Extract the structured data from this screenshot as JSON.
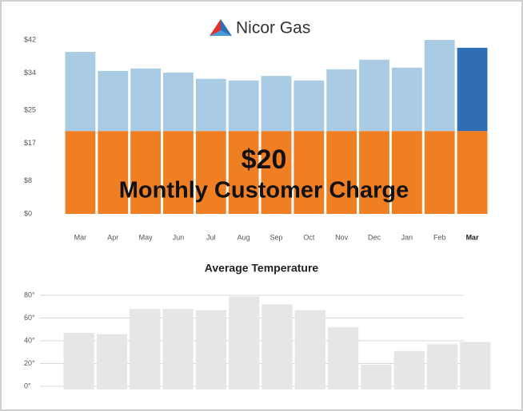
{
  "chart_data": [
    {
      "type": "bar",
      "stacked": true,
      "title": "Nicor Gas",
      "categories": [
        "Mar",
        "Apr",
        "May",
        "Jun",
        "Jul",
        "Aug",
        "Sep",
        "Oct",
        "Nov",
        "Dec",
        "Jan",
        "Feb",
        "Mar"
      ],
      "highlight_category": 12,
      "series": [
        {
          "color": "#ef7f22",
          "values": [
            20,
            20,
            20,
            20,
            20,
            20,
            20,
            20,
            20,
            20,
            20,
            20,
            20
          ]
        },
        {
          "colors": [
            "#a9cbe4",
            "#a9cbe4",
            "#a9cbe4",
            "#a9cbe4",
            "#a9cbe4",
            "#a9cbe4",
            "#a9cbe4",
            "#a9cbe4",
            "#a9cbe4",
            "#a9cbe4",
            "#a9cbe4",
            "#a9cbe4",
            "#2f6db5"
          ],
          "values": [
            19.1,
            14.5,
            15.1,
            14.1,
            12.6,
            12.2,
            13.3,
            12.2,
            14.9,
            17.2,
            15.3,
            22,
            20.1
          ]
        }
      ],
      "ylim": [
        0,
        42
      ],
      "yticks": [
        {
          "value": 0,
          "label": "$0"
        },
        {
          "value": 8,
          "label": "$8"
        },
        {
          "value": 17,
          "label": "$17"
        },
        {
          "value": 25,
          "label": "$25"
        },
        {
          "value": 34,
          "label": "$34"
        },
        {
          "value": 42,
          "label": "$42"
        }
      ],
      "annotations": [
        "$20",
        "Monthly Customer Charge"
      ]
    },
    {
      "type": "bar",
      "title": "Average Temperature",
      "color": "#e6e6e6",
      "values": [
        47,
        46,
        68,
        68,
        67,
        79,
        72,
        67,
        52,
        19,
        31,
        37,
        39
      ],
      "ylim": [
        0,
        80
      ],
      "yticks": [
        {
          "value": 0,
          "label": "0°"
        },
        {
          "value": 20,
          "label": "20°"
        },
        {
          "value": 40,
          "label": "40°"
        },
        {
          "value": 60,
          "label": "60°"
        },
        {
          "value": 80,
          "label": "80°"
        }
      ],
      "grid": true
    }
  ]
}
